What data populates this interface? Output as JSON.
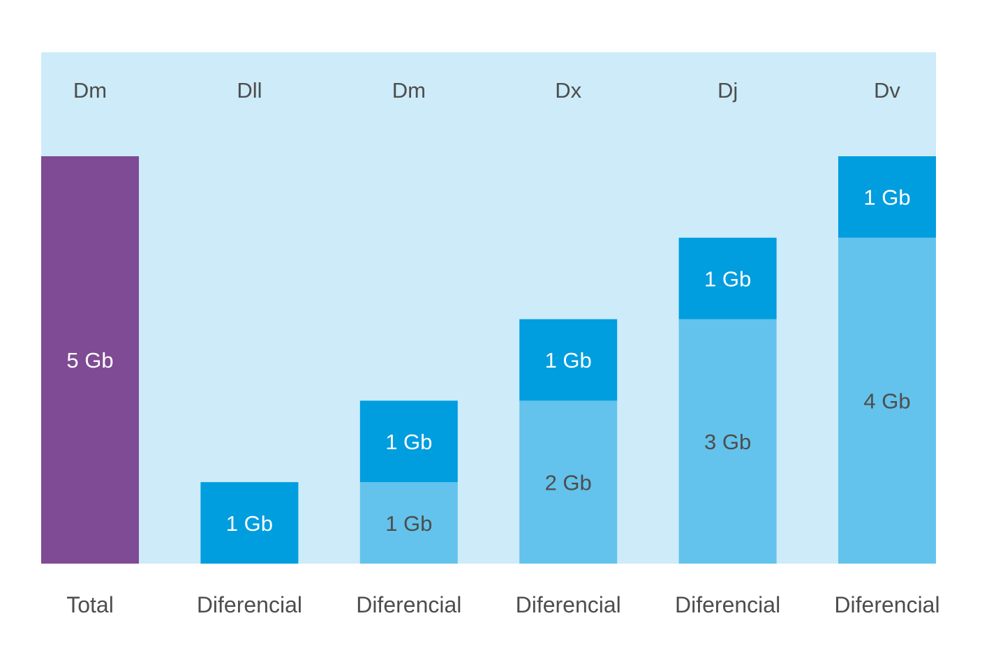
{
  "colors": {
    "panel": "#cdebf8",
    "total_bar": "#7e4b94",
    "accumulated": "#63c3ec",
    "new_increment": "#009ddf",
    "label_dark": "#4d4d4d",
    "label_light": "#ffffff"
  },
  "chart_data": {
    "type": "bar",
    "stacked": true,
    "unit": "Gb",
    "ylim": [
      0,
      5
    ],
    "categories": [
      "Dm",
      "Dll",
      "Dm",
      "Dx",
      "Dj",
      "Dv"
    ],
    "bottom_labels": [
      "Total",
      "Diferencial",
      "Diferencial",
      "Diferencial",
      "Diferencial",
      "Diferencial"
    ],
    "series": [
      {
        "values": [
          5,
          0,
          0,
          0,
          0,
          0
        ],
        "labels": [
          "5 Gb",
          "",
          "",
          "",
          "",
          ""
        ]
      },
      {
        "values": [
          0,
          0,
          1,
          2,
          3,
          4
        ],
        "labels": [
          "",
          "",
          "1 Gb",
          "2 Gb",
          "3 Gb",
          "4 Gb"
        ]
      },
      {
        "values": [
          0,
          1,
          1,
          1,
          1,
          1
        ],
        "labels": [
          "",
          "1 Gb",
          "1 Gb",
          "1 Gb",
          "1 Gb",
          "1 Gb"
        ]
      }
    ],
    "grid": false,
    "legend": "none"
  }
}
